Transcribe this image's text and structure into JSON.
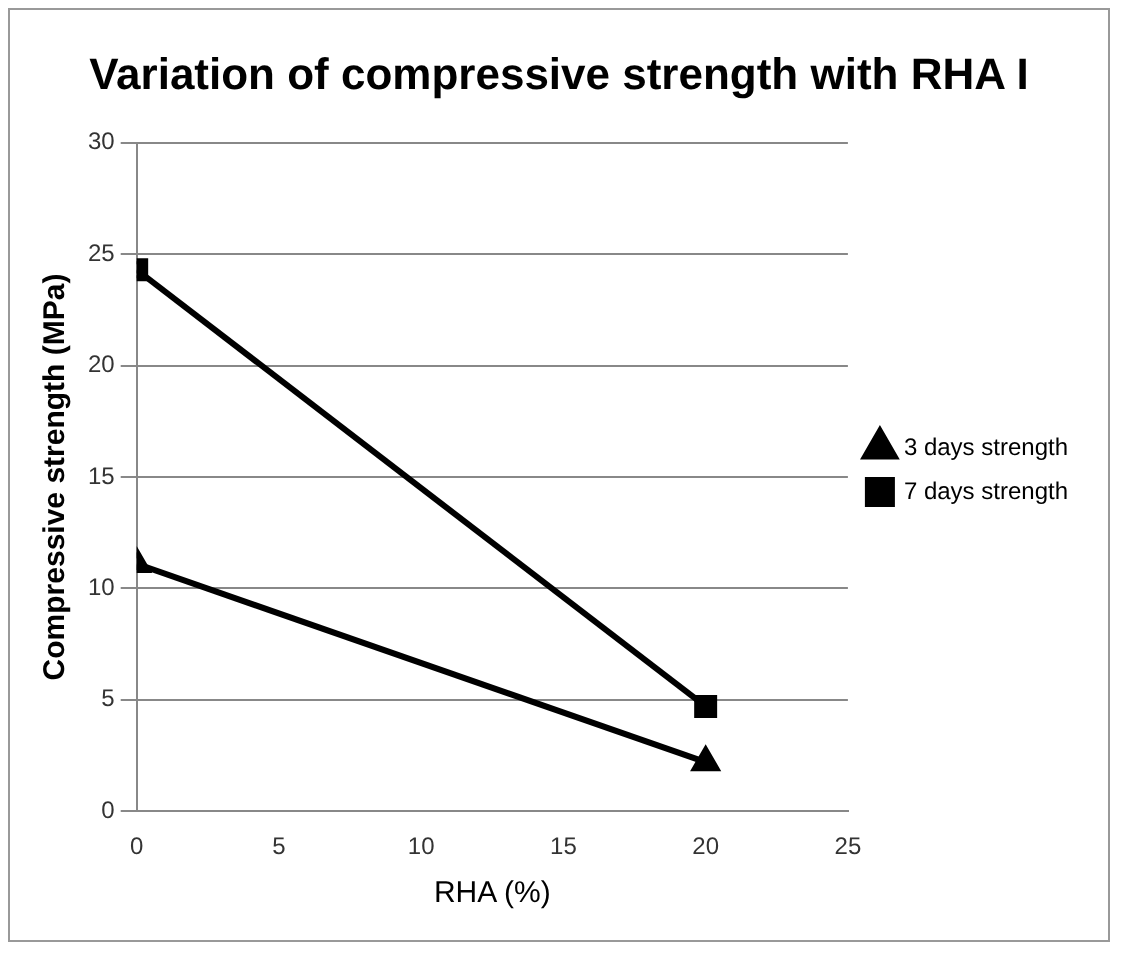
{
  "chart_data": {
    "type": "line",
    "title": "Variation of compressive strength with RHA I",
    "xlabel": "RHA (%)",
    "ylabel": "Compressive strength (MPa)",
    "x": [
      0,
      20
    ],
    "series": [
      {
        "name": "3 days strength",
        "color": "#000000",
        "values": [
          11.1,
          2.2
        ],
        "marker": "triangle"
      },
      {
        "name": "7 days strength",
        "color": "#000000",
        "values": [
          24.3,
          4.7
        ],
        "marker": "square"
      }
    ],
    "xlim": [
      0,
      25
    ],
    "xticks": [
      0,
      5,
      10,
      15,
      20,
      25
    ],
    "ylim": [
      0,
      30
    ],
    "yticks": [
      0,
      5,
      10,
      15,
      20,
      25,
      30
    ],
    "grid": "y",
    "legend": "right"
  }
}
